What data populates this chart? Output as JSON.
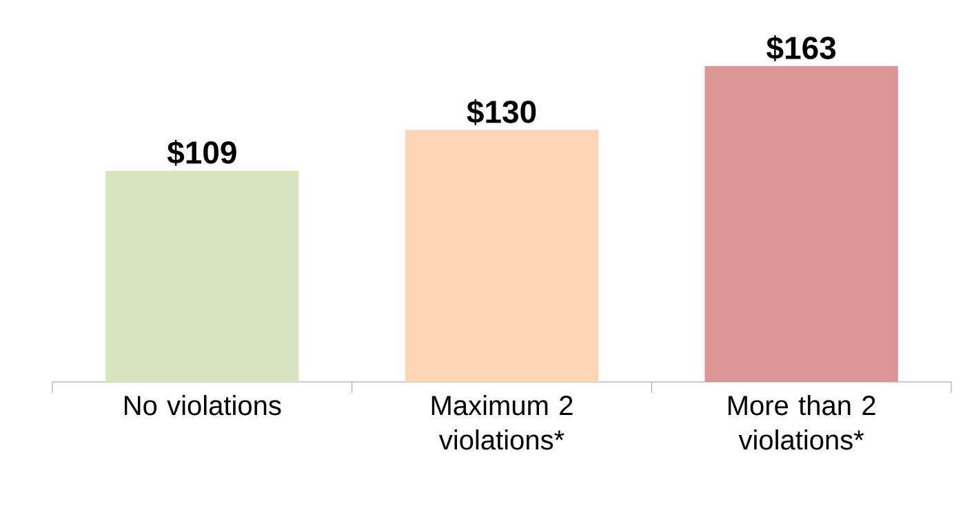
{
  "chart_data": {
    "type": "bar",
    "categories": [
      "No violations",
      "Maximum 2 violations*",
      "More than 2 violations*"
    ],
    "values": [
      109,
      130,
      163
    ],
    "colors": [
      "#d7e4bd",
      "#fcd5b5",
      "#d99694"
    ],
    "value_labels": [
      "$109",
      "$130",
      "$163"
    ]
  }
}
